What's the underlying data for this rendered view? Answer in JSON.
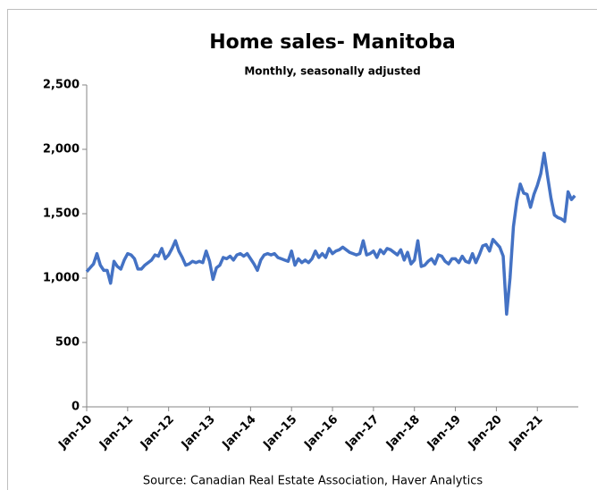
{
  "chart_data": {
    "type": "line",
    "title": "Home sales- Manitoba",
    "subtitle": "Monthly, seasonally adjusted",
    "source": "Source: Canadian Real Estate Association, Haver Analytics",
    "categories": [
      "Jan-10",
      null,
      null,
      null,
      null,
      null,
      null,
      null,
      null,
      null,
      null,
      null,
      "Jan-11",
      null,
      null,
      null,
      null,
      null,
      null,
      null,
      null,
      null,
      null,
      null,
      "Jan-12",
      null,
      null,
      null,
      null,
      null,
      null,
      null,
      null,
      null,
      null,
      null,
      "Jan-13",
      null,
      null,
      null,
      null,
      null,
      null,
      null,
      null,
      null,
      null,
      null,
      "Jan-14",
      null,
      null,
      null,
      null,
      null,
      null,
      null,
      null,
      null,
      null,
      null,
      "Jan-15",
      null,
      null,
      null,
      null,
      null,
      null,
      null,
      null,
      null,
      null,
      null,
      "Jan-16",
      null,
      null,
      null,
      null,
      null,
      null,
      null,
      null,
      null,
      null,
      null,
      "Jan-17",
      null,
      null,
      null,
      null,
      null,
      null,
      null,
      null,
      null,
      null,
      null,
      "Jan-18",
      null,
      null,
      null,
      null,
      null,
      null,
      null,
      null,
      null,
      null,
      null,
      "Jan-19",
      null,
      null,
      null,
      null,
      null,
      null,
      null,
      null,
      null,
      null,
      null,
      "Jan-20",
      null,
      null,
      null,
      null,
      null,
      null,
      null,
      null,
      null,
      null,
      null,
      "Jan-21",
      null,
      null,
      null,
      null,
      null,
      null,
      null,
      null,
      null,
      null,
      null
    ],
    "series": [
      {
        "name": "Home sales",
        "color": "#4472c4",
        "values": [
          1050,
          1080,
          1110,
          1190,
          1100,
          1060,
          1060,
          960,
          1130,
          1090,
          1070,
          1140,
          1190,
          1180,
          1150,
          1070,
          1070,
          1100,
          1120,
          1140,
          1180,
          1170,
          1230,
          1150,
          1180,
          1230,
          1290,
          1210,
          1160,
          1100,
          1110,
          1130,
          1120,
          1130,
          1120,
          1210,
          1130,
          990,
          1080,
          1100,
          1160,
          1150,
          1170,
          1140,
          1180,
          1190,
          1170,
          1190,
          1150,
          1110,
          1060,
          1140,
          1180,
          1190,
          1180,
          1190,
          1160,
          1150,
          1140,
          1130,
          1210,
          1100,
          1150,
          1120,
          1140,
          1120,
          1150,
          1210,
          1160,
          1190,
          1160,
          1230,
          1190,
          1210,
          1220,
          1240,
          1220,
          1200,
          1190,
          1180,
          1190,
          1290,
          1180,
          1190,
          1210,
          1160,
          1220,
          1190,
          1230,
          1220,
          1200,
          1180,
          1220,
          1140,
          1200,
          1110,
          1140,
          1290,
          1090,
          1100,
          1130,
          1150,
          1110,
          1180,
          1170,
          1130,
          1110,
          1150,
          1150,
          1120,
          1170,
          1130,
          1120,
          1190,
          1120,
          1180,
          1250,
          1260,
          1210,
          1300,
          1270,
          1240,
          1170,
          720,
          1000,
          1400,
          1600,
          1730,
          1660,
          1650,
          1550,
          1650,
          1720,
          1810,
          1970,
          1790,
          1620,
          1490,
          1470,
          1460,
          1440,
          1670,
          1610,
          1640
        ]
      }
    ],
    "ylim": [
      0,
      2500
    ],
    "yticks": [
      0,
      {
        "value": 500,
        "label": "500"
      },
      {
        "value": 1000,
        "label": "1,000"
      },
      {
        "value": 1500,
        "label": "1,500"
      },
      {
        "value": 2000,
        "label": "2,000"
      },
      {
        "value": 2500,
        "label": "2,500"
      }
    ],
    "grid": false
  }
}
